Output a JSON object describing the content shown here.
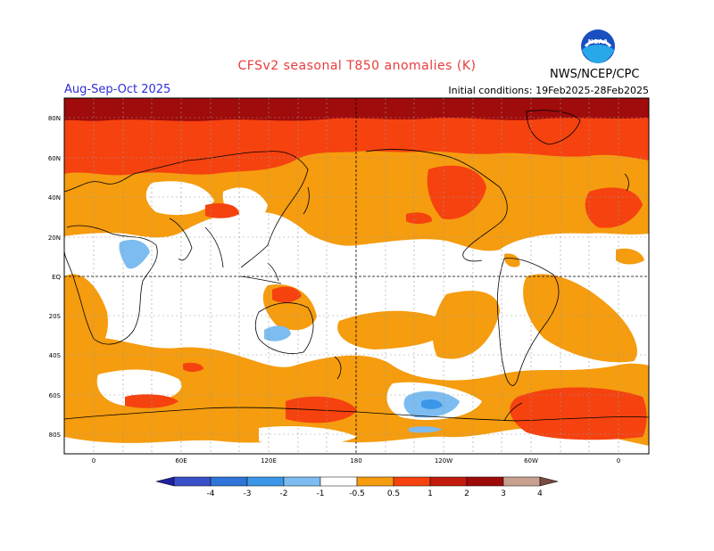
{
  "header": {
    "title": "CFSv2 seasonal T850 anomalies (K)",
    "season": "Aug-Sep-Oct 2025",
    "initial_conditions": "Initial conditions: 19Feb2025-28Feb2025",
    "agency": "NWS/NCEP/CPC",
    "logo_text": "NOAA"
  },
  "map": {
    "lat_labels": [
      "80N",
      "60N",
      "40N",
      "20N",
      "EQ",
      "20S",
      "40S",
      "60S",
      "80S"
    ],
    "lon_labels": [
      "0",
      "60E",
      "120E",
      "180",
      "120W",
      "60W",
      "0"
    ]
  },
  "colorbar": {
    "labels": [
      "-4",
      "-3",
      "-2",
      "-1",
      "-0.5",
      "0.5",
      "1",
      "2",
      "3",
      "4"
    ],
    "colors": [
      "#2020a0",
      "#3a50c8",
      "#2f74d8",
      "#3c96e8",
      "#7cbcf0",
      "#ffffff",
      "#f59c0f",
      "#f5420f",
      "#c21c0c",
      "#9e0a0a",
      "#c8a090",
      "#7a4a40"
    ]
  },
  "colors": {
    "title": "#e83a3a",
    "season": "#2d2dd8",
    "anom_05_1": "#f59c0f",
    "anom_1_2": "#f5420f",
    "anom_2_3": "#a00b0b",
    "anom_neg": "#7cbcf0",
    "anom_neg2": "#3c96e8"
  }
}
